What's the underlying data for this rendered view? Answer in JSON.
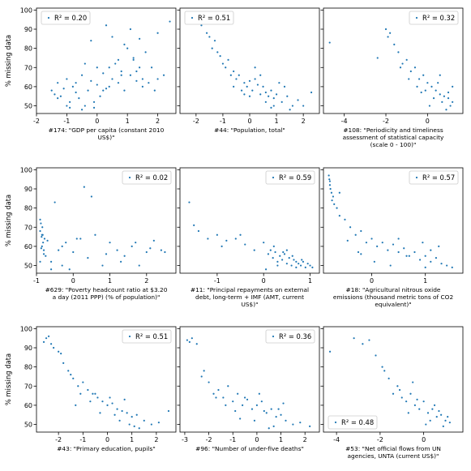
{
  "figure": {
    "ylabel": "% missing data",
    "point_color": "#1f77b4"
  },
  "chart_data": [
    {
      "type": "scatter",
      "xlabel": [
        "#174: \"GDP per capita (constant 2010",
        "US$)\""
      ],
      "legend": "R² = 0.20",
      "legend_position": "upper left",
      "xlim": [
        -2,
        2.6
      ],
      "xticks": [
        -2,
        -1,
        0,
        1,
        2
      ],
      "ylim": [
        46,
        101
      ],
      "yticks": [
        50,
        60,
        70,
        80,
        90,
        100
      ],
      "x": [
        -1.5,
        -1.4,
        -1.3,
        -1.2,
        -1.1,
        -1.0,
        -0.9,
        -0.8,
        -0.7,
        -0.6,
        -0.5,
        -0.4,
        -0.3,
        -0.2,
        -0.1,
        0.0,
        0.1,
        0.2,
        0.3,
        0.4,
        0.5,
        0.6,
        0.7,
        0.8,
        0.9,
        1.0,
        1.1,
        1.2,
        1.3,
        1.4,
        1.5,
        1.6,
        1.8,
        2.0,
        2.2,
        2.4,
        -1.3,
        -1.0,
        -0.7,
        -0.4,
        -0.1,
        0.2,
        0.5,
        0.8,
        1.1,
        1.4,
        1.7,
        2.0,
        -0.9,
        -0.5,
        0.0,
        0.4,
        0.9,
        1.2,
        1.5,
        1.9,
        -0.2,
        0.3,
        0.7,
        1.3
      ],
      "y": [
        58,
        56,
        62,
        55,
        59,
        64,
        52,
        60,
        57,
        54,
        66,
        50,
        58,
        63,
        49,
        61,
        55,
        67,
        59,
        70,
        64,
        72,
        62,
        68,
        58,
        80,
        66,
        75,
        63,
        85,
        60,
        78,
        70,
        88,
        66,
        94,
        54,
        50,
        62,
        72,
        52,
        58,
        86,
        66,
        90,
        70,
        62,
        64,
        49,
        48,
        70,
        60,
        82,
        74,
        64,
        58,
        84,
        92,
        74,
        68
      ]
    },
    {
      "type": "scatter",
      "xlabel": [
        "#44: \"Population, total\""
      ],
      "legend": "R² = 0.51",
      "legend_position": "upper left",
      "xlim": [
        -2.6,
        2.6
      ],
      "xticks": [
        -2,
        -1,
        0,
        1,
        2
      ],
      "ylim": [
        46,
        101
      ],
      "yticks": [
        50,
        60,
        70,
        80,
        90,
        100
      ],
      "x": [
        -2.2,
        -2.0,
        -1.8,
        -1.6,
        -1.5,
        -1.4,
        -1.2,
        -1.0,
        -0.9,
        -0.8,
        -0.6,
        -0.5,
        -0.4,
        -0.2,
        -0.1,
        0.0,
        0.1,
        0.2,
        0.3,
        0.4,
        0.5,
        0.6,
        0.7,
        0.8,
        0.9,
        1.0,
        1.2,
        1.4,
        1.6,
        1.8,
        2.0,
        2.3,
        -1.9,
        -1.3,
        -0.7,
        -0.3,
        0.2,
        0.6,
        1.1,
        1.5,
        -0.6,
        0.0,
        0.4,
        0.9,
        1.3,
        -1.1,
        -0.2,
        0.8
      ],
      "y": [
        95,
        96,
        92,
        88,
        86,
        80,
        78,
        72,
        70,
        74,
        68,
        64,
        66,
        62,
        60,
        63,
        58,
        64,
        61,
        56,
        60,
        57,
        55,
        58,
        54,
        56,
        52,
        55,
        50,
        53,
        50,
        57,
        93,
        84,
        66,
        58,
        70,
        52,
        62,
        48,
        60,
        55,
        66,
        50,
        60,
        76,
        56,
        49
      ]
    },
    {
      "type": "scatter",
      "xlabel": [
        "#108: \"Periodicity and timeliness",
        "assessment of statistical capacity",
        "(scale 0 - 100)\""
      ],
      "legend": "R² = 0.32",
      "legend_position": "upper right",
      "xlim": [
        -5.0,
        1.7
      ],
      "xticks": [
        -4,
        -2,
        0
      ],
      "ylim": [
        46,
        101
      ],
      "yticks": [
        50,
        60,
        70,
        80,
        90,
        100
      ],
      "x": [
        -4.7,
        -2.4,
        -2.0,
        -1.8,
        -1.6,
        -1.4,
        -1.2,
        -1.0,
        -0.8,
        -0.6,
        -0.4,
        -0.2,
        0.0,
        0.2,
        0.4,
        0.6,
        0.8,
        1.0,
        1.2,
        -1.9,
        -1.3,
        -0.9,
        -0.5,
        -0.1,
        0.3,
        0.7,
        1.1,
        0.5,
        0.9,
        1.2,
        -0.3,
        0.1,
        0.6,
        1.0
      ],
      "y": [
        83,
        75,
        90,
        88,
        82,
        78,
        72,
        74,
        68,
        70,
        64,
        66,
        62,
        60,
        58,
        56,
        55,
        54,
        52,
        86,
        70,
        64,
        60,
        58,
        54,
        52,
        50,
        62,
        48,
        60,
        57,
        50,
        66,
        57
      ]
    },
    {
      "type": "scatter",
      "xlabel": [
        "#629: \"Poverty headcount ratio at $3.20",
        "a day (2011 PPP) (% of population)\""
      ],
      "legend": "R² = 0.02",
      "legend_position": "upper right",
      "xlim": [
        -1.0,
        2.8
      ],
      "xticks": [
        -1,
        0,
        1,
        2
      ],
      "ylim": [
        46,
        101
      ],
      "yticks": [
        50,
        60,
        70,
        80,
        90,
        100
      ],
      "x": [
        -0.9,
        -0.9,
        -0.88,
        -0.86,
        -0.85,
        -0.84,
        -0.82,
        -0.8,
        -0.78,
        -0.75,
        -0.7,
        -0.6,
        -0.5,
        -0.4,
        -0.3,
        -0.2,
        -0.1,
        0.0,
        0.2,
        0.4,
        0.6,
        0.8,
        1.0,
        1.2,
        1.4,
        1.6,
        1.8,
        2.0,
        2.2,
        2.4,
        -0.9,
        -0.85,
        -0.8,
        -0.6,
        -0.3,
        0.1,
        0.5,
        0.9,
        1.3,
        1.7,
        2.1,
        2.5,
        -0.87,
        -0.83,
        0.3,
        1.5
      ],
      "y": [
        74,
        68,
        72,
        65,
        60,
        70,
        62,
        58,
        64,
        55,
        63,
        52,
        83,
        58,
        50,
        62,
        48,
        57,
        64,
        54,
        66,
        50,
        62,
        58,
        55,
        60,
        50,
        57,
        63,
        58,
        52,
        66,
        56,
        48,
        60,
        64,
        86,
        56,
        52,
        62,
        59,
        57,
        59,
        66,
        91,
        94
      ]
    },
    {
      "type": "scatter",
      "xlabel": [
        "#11: \"Principal repayments on external",
        "debt, long-term + IMF (AMT, current",
        "US$)\""
      ],
      "legend": "R² = 0.59",
      "legend_position": "upper right",
      "xlim": [
        -1.8,
        1.2
      ],
      "xticks": [
        -1,
        0,
        1
      ],
      "ylim": [
        46,
        101
      ],
      "yticks": [
        50,
        60,
        70,
        80,
        90,
        100
      ],
      "x": [
        -1.6,
        -1.5,
        -1.2,
        -1.0,
        -0.8,
        -0.6,
        -0.4,
        -0.2,
        0.0,
        0.1,
        0.15,
        0.2,
        0.25,
        0.3,
        0.35,
        0.4,
        0.45,
        0.5,
        0.55,
        0.6,
        0.65,
        0.7,
        0.75,
        0.8,
        0.85,
        0.9,
        0.95,
        1.0,
        1.05,
        -1.4,
        -0.9,
        -0.5,
        0.05,
        0.22,
        0.42,
        0.62,
        0.82,
        0.3,
        0.5,
        0.7
      ],
      "y": [
        83,
        71,
        64,
        66,
        63,
        64,
        61,
        58,
        62,
        56,
        58,
        54,
        57,
        52,
        55,
        53,
        56,
        51,
        54,
        50,
        53,
        52,
        51,
        50,
        52,
        49,
        51,
        50,
        49,
        68,
        60,
        66,
        48,
        60,
        57,
        55,
        53,
        50,
        58,
        49
      ]
    },
    {
      "type": "scatter",
      "xlabel": [
        "#18: \"Agricultural nitrous oxide",
        "emissions (thousand metric tons of CO2",
        "equivalent)\""
      ],
      "legend": "R² = 0.57",
      "legend_position": "upper right",
      "xlim": [
        -0.9,
        1.7
      ],
      "xticks": [
        0,
        1
      ],
      "ylim": [
        46,
        101
      ],
      "yticks": [
        50,
        60,
        70,
        80,
        90,
        100
      ],
      "x": [
        -0.8,
        -0.79,
        -0.78,
        -0.77,
        -0.75,
        -0.72,
        -0.7,
        -0.65,
        -0.6,
        -0.5,
        -0.4,
        -0.3,
        -0.2,
        -0.1,
        0.0,
        0.1,
        0.2,
        0.3,
        0.4,
        0.5,
        0.6,
        0.7,
        0.8,
        0.9,
        1.0,
        1.1,
        1.2,
        1.3,
        1.4,
        1.5,
        -0.78,
        -0.74,
        -0.6,
        -0.45,
        -0.25,
        0.05,
        0.35,
        0.65,
        0.95,
        1.25,
        -0.2,
        0.5,
        1.0,
        1.1
      ],
      "y": [
        97,
        95,
        92,
        90,
        88,
        86,
        82,
        80,
        76,
        74,
        70,
        66,
        68,
        62,
        64,
        60,
        62,
        58,
        61,
        57,
        59,
        55,
        57,
        53,
        55,
        52,
        54,
        51,
        50,
        49,
        94,
        84,
        88,
        63,
        57,
        52,
        50,
        55,
        62,
        60,
        56,
        64,
        49,
        58
      ]
    },
    {
      "type": "scatter",
      "xlabel": [
        "#43: \"Primary education, pupils\""
      ],
      "legend": "R² = 0.51",
      "legend_position": "upper right",
      "xlim": [
        -2.9,
        2.8
      ],
      "xticks": [
        -2,
        -1,
        0,
        1,
        2
      ],
      "ylim": [
        46,
        101
      ],
      "yticks": [
        50,
        60,
        70,
        80,
        90,
        100
      ],
      "x": [
        -2.6,
        -2.4,
        -2.2,
        -2.0,
        -1.8,
        -1.6,
        -1.4,
        -1.2,
        -1.0,
        -0.8,
        -0.6,
        -0.4,
        -0.2,
        0.0,
        0.2,
        0.4,
        0.6,
        0.8,
        1.0,
        1.2,
        1.5,
        1.8,
        2.1,
        2.5,
        -2.5,
        -2.3,
        -1.9,
        -1.5,
        -1.1,
        -0.7,
        -0.3,
        0.1,
        0.5,
        0.9,
        1.3,
        -1.3,
        -0.5,
        0.3,
        0.7,
        1.1
      ],
      "y": [
        93,
        96,
        90,
        88,
        82,
        78,
        74,
        70,
        72,
        68,
        66,
        64,
        62,
        60,
        61,
        58,
        57,
        56,
        54,
        55,
        52,
        50,
        51,
        57,
        95,
        92,
        87,
        76,
        66,
        62,
        56,
        64,
        52,
        50,
        48,
        60,
        66,
        55,
        63,
        49
      ]
    },
    {
      "type": "scatter",
      "xlabel": [
        "#96: \"Number of under-five deaths\""
      ],
      "legend": "R² = 0.36",
      "legend_position": "upper right",
      "xlim": [
        -3.2,
        2.6
      ],
      "xticks": [
        -3,
        -2,
        -1,
        0,
        1,
        2
      ],
      "ylim": [
        46,
        101
      ],
      "yticks": [
        50,
        60,
        70,
        80,
        90,
        100
      ],
      "x": [
        -2.9,
        -2.7,
        -2.5,
        -2.2,
        -2.0,
        -1.8,
        -1.6,
        -1.4,
        -1.2,
        -1.0,
        -0.8,
        -0.6,
        -0.4,
        -0.2,
        0.0,
        0.2,
        0.4,
        0.6,
        0.8,
        1.0,
        1.2,
        1.5,
        1.8,
        2.2,
        -2.8,
        -2.3,
        -1.7,
        -1.3,
        -0.9,
        -0.5,
        -0.1,
        0.3,
        0.7,
        1.1,
        -0.7,
        0.1,
        0.5,
        0.9
      ],
      "y": [
        94,
        95,
        92,
        78,
        72,
        66,
        68,
        64,
        70,
        62,
        66,
        60,
        63,
        58,
        60,
        62,
        56,
        58,
        54,
        55,
        52,
        50,
        51,
        49,
        93,
        75,
        64,
        60,
        57,
        64,
        52,
        57,
        49,
        61,
        53,
        66,
        48,
        58
      ]
    },
    {
      "type": "scatter",
      "xlabel": [
        "#53: \"Net official flows from UN",
        "agencies, UNTA (current US$)\""
      ],
      "legend": "R² = 0.48",
      "legend_position": "lower left",
      "xlim": [
        -4.6,
        1.8
      ],
      "xticks": [
        -4,
        -2,
        0
      ],
      "ylim": [
        46,
        101
      ],
      "yticks": [
        50,
        60,
        70,
        80,
        90,
        100
      ],
      "x": [
        -4.3,
        -3.2,
        -2.5,
        -2.2,
        -1.9,
        -1.6,
        -1.4,
        -1.2,
        -1.0,
        -0.8,
        -0.6,
        -0.4,
        -0.2,
        0.0,
        0.2,
        0.4,
        0.6,
        0.8,
        1.0,
        1.2,
        -2.8,
        -1.8,
        -1.1,
        -0.7,
        -0.3,
        0.1,
        0.5,
        0.9,
        -0.5,
        0.3,
        0.7,
        1.1
      ],
      "y": [
        88,
        95,
        94,
        86,
        80,
        74,
        66,
        70,
        64,
        62,
        66,
        60,
        58,
        62,
        56,
        58,
        54,
        55,
        52,
        51,
        92,
        78,
        68,
        56,
        63,
        50,
        60,
        49,
        72,
        52,
        57,
        54
      ]
    }
  ]
}
